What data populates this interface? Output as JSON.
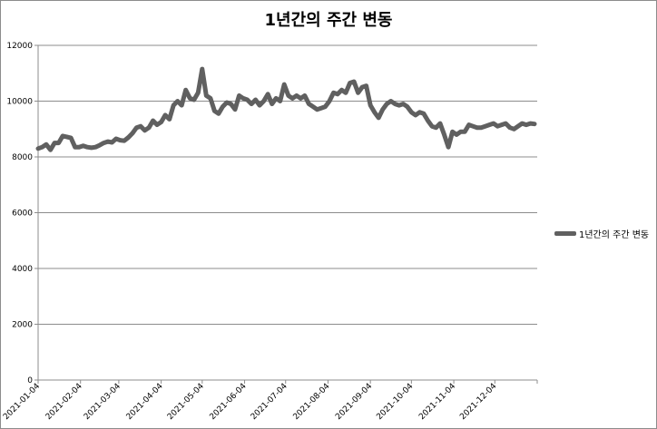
{
  "chart_data": {
    "type": "line",
    "title": "1년간의 주간 변동",
    "xlabel": "",
    "ylabel": "",
    "ylim": [
      0,
      12000
    ],
    "yticks": [
      "0",
      "2000",
      "4000",
      "6000",
      "8000",
      "10000",
      "12000"
    ],
    "xticks": [
      "2021-01-04",
      "2021-02-04",
      "2021-03-04",
      "2021-04-04",
      "2021-05-04",
      "2021-06-04",
      "2021-07-04",
      "2021-08-04",
      "2021-09-04",
      "2021-10-04",
      "2021-11-04",
      "2021-12-04"
    ],
    "grid": "horizontal",
    "legend_position": "right",
    "series": [
      {
        "name": "1년간의 주간 변동",
        "color": "#606060",
        "x": [
          "2021-01-04",
          "2021-01-07",
          "2021-01-10",
          "2021-01-13",
          "2021-01-16",
          "2021-01-19",
          "2021-01-22",
          "2021-01-25",
          "2021-01-28",
          "2021-01-31",
          "2021-02-03",
          "2021-02-06",
          "2021-02-09",
          "2021-02-12",
          "2021-02-15",
          "2021-02-18",
          "2021-02-21",
          "2021-02-24",
          "2021-02-27",
          "2021-03-02",
          "2021-03-05",
          "2021-03-08",
          "2021-03-11",
          "2021-03-14",
          "2021-03-17",
          "2021-03-20",
          "2021-03-23",
          "2021-03-26",
          "2021-03-29",
          "2021-04-01",
          "2021-04-04",
          "2021-04-07",
          "2021-04-10",
          "2021-04-13",
          "2021-04-16",
          "2021-04-19",
          "2021-04-22",
          "2021-04-25",
          "2021-04-28",
          "2021-05-01",
          "2021-05-04",
          "2021-05-07",
          "2021-05-10",
          "2021-05-13",
          "2021-05-16",
          "2021-05-19",
          "2021-05-22",
          "2021-05-25",
          "2021-05-28",
          "2021-05-31",
          "2021-06-03",
          "2021-06-06",
          "2021-06-09",
          "2021-06-12",
          "2021-06-15",
          "2021-06-18",
          "2021-06-21",
          "2021-06-24",
          "2021-06-27",
          "2021-06-30",
          "2021-07-03",
          "2021-07-06",
          "2021-07-09",
          "2021-07-12",
          "2021-07-15",
          "2021-07-18",
          "2021-07-21",
          "2021-07-24",
          "2021-07-27",
          "2021-07-30",
          "2021-08-02",
          "2021-08-05",
          "2021-08-08",
          "2021-08-11",
          "2021-08-14",
          "2021-08-17",
          "2021-08-20",
          "2021-08-23",
          "2021-08-26",
          "2021-08-29",
          "2021-09-01",
          "2021-09-04",
          "2021-09-07",
          "2021-09-10",
          "2021-09-13",
          "2021-09-16",
          "2021-09-19",
          "2021-09-22",
          "2021-09-25",
          "2021-09-28",
          "2021-10-01",
          "2021-10-04",
          "2021-10-07",
          "2021-10-10",
          "2021-10-13",
          "2021-10-16",
          "2021-10-19",
          "2021-10-22",
          "2021-10-25",
          "2021-10-28",
          "2021-10-31",
          "2021-11-03",
          "2021-11-06",
          "2021-11-09",
          "2021-11-12",
          "2021-11-15",
          "2021-11-18",
          "2021-11-21",
          "2021-11-24",
          "2021-11-27",
          "2021-11-30",
          "2021-12-03",
          "2021-12-06",
          "2021-12-09",
          "2021-12-12",
          "2021-12-15",
          "2021-12-18",
          "2021-12-21",
          "2021-12-24",
          "2021-12-27",
          "2021-12-30",
          "2022-01-02"
        ],
        "values": [
          8300,
          8350,
          8450,
          8250,
          8500,
          8500,
          8750,
          8720,
          8680,
          8350,
          8350,
          8400,
          8350,
          8330,
          8350,
          8420,
          8500,
          8550,
          8520,
          8650,
          8600,
          8580,
          8700,
          8850,
          9050,
          9100,
          8950,
          9050,
          9300,
          9150,
          9250,
          9500,
          9350,
          9850,
          10000,
          9850,
          10400,
          10100,
          10050,
          10300,
          11150,
          10200,
          10100,
          9650,
          9550,
          9800,
          9950,
          9900,
          9700,
          10200,
          10100,
          10050,
          9900,
          10050,
          9850,
          10000,
          10250,
          9900,
          10100,
          10000,
          10600,
          10200,
          10100,
          10200,
          10100,
          10200,
          9900,
          9800,
          9700,
          9750,
          9800,
          10000,
          10300,
          10250,
          10400,
          10300,
          10650,
          10700,
          10300,
          10500,
          10550,
          9850,
          9600,
          9400,
          9700,
          9900,
          10000,
          9900,
          9850,
          9900,
          9800,
          9600,
          9500,
          9600,
          9550,
          9300,
          9100,
          9050,
          9200,
          8800,
          8350,
          8900,
          8800,
          8900,
          8900,
          9150,
          9100,
          9050,
          9050,
          9100,
          9150,
          9200,
          9100,
          9150,
          9200,
          9050,
          9000,
          9100,
          9200,
          9150,
          9200,
          9180
        ]
      }
    ]
  },
  "legend": {
    "label": "1년간의 주간 변동"
  }
}
